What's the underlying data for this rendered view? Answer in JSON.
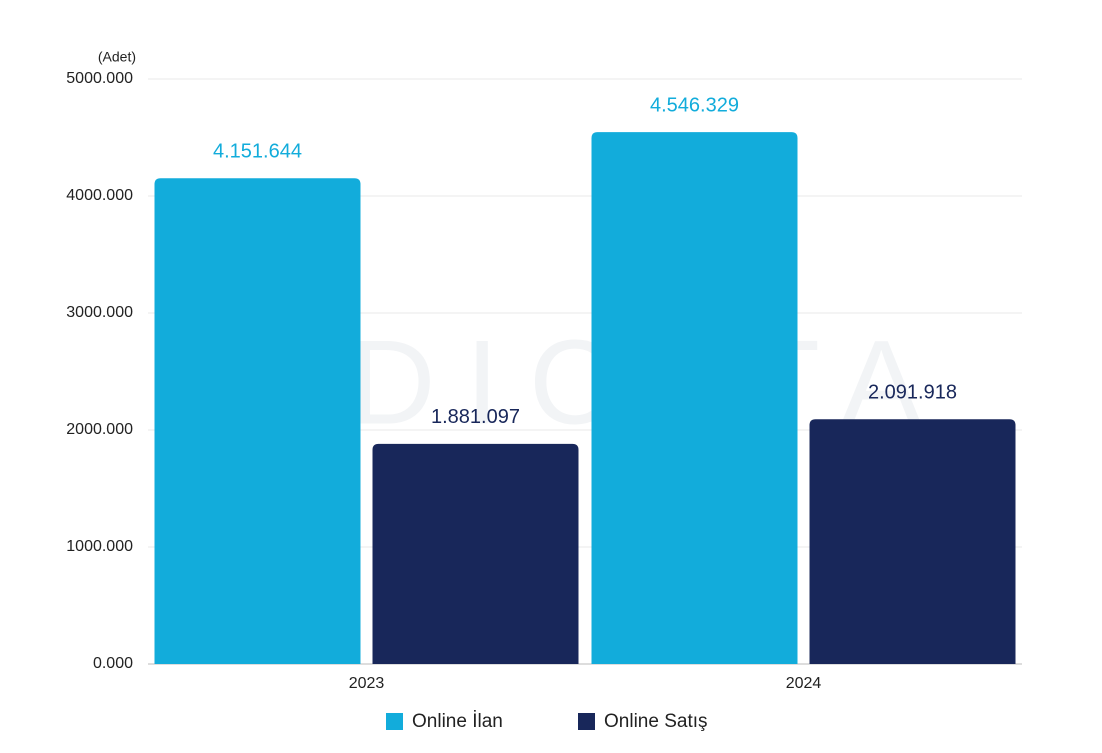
{
  "chart_data": {
    "type": "bar",
    "watermark": "INDICATA",
    "y_label": "(Adet)",
    "categories": [
      "2023",
      "2024"
    ],
    "series": [
      {
        "name": "Online İlan",
        "color": "#12acdb",
        "values": [
          4151644,
          4546329
        ],
        "value_labels": [
          "4.151.644",
          "4.546.329"
        ]
      },
      {
        "name": "Online Satış",
        "color": "#18275a",
        "values": [
          1881097,
          2091918
        ],
        "value_labels": [
          "1.881.097",
          "2.091.918"
        ]
      }
    ],
    "ylim": [
      0,
      5000000
    ],
    "yticks": [
      {
        "value": 0,
        "label": "0.000"
      },
      {
        "value": 1000000,
        "label": "1000.000"
      },
      {
        "value": 2000000,
        "label": "2000.000"
      },
      {
        "value": 3000000,
        "label": "3000.000"
      },
      {
        "value": 4000000,
        "label": "4000.000"
      },
      {
        "value": 5000000,
        "label": "5000.000"
      }
    ],
    "grid": true,
    "legend": "bottom"
  }
}
